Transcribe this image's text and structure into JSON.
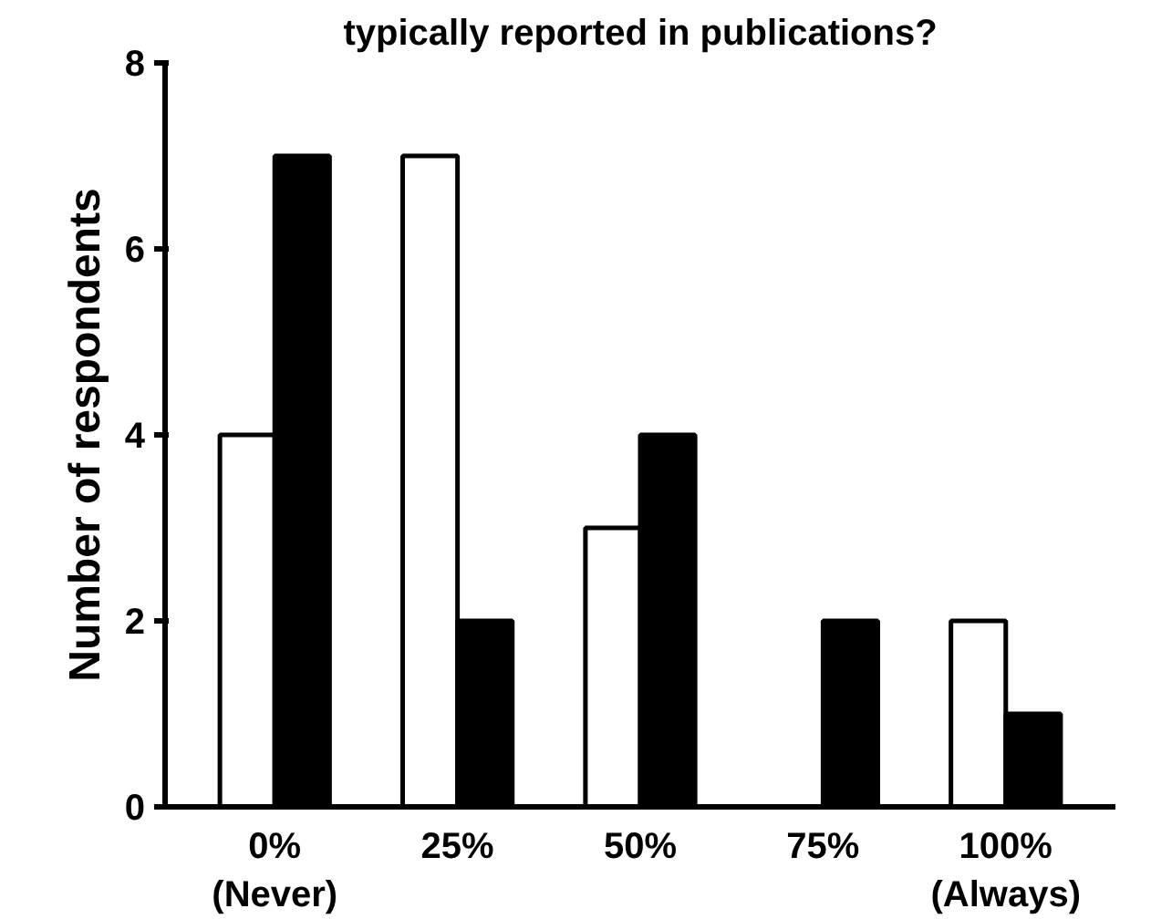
{
  "chart_data": {
    "type": "bar",
    "title": "typically reported in publications?",
    "ylabel": "Number of respondents",
    "categories": [
      "0%\n(Never)",
      "25%",
      "50%",
      "75%",
      "100%\n(Always)"
    ],
    "series": [
      {
        "color": "#ffffff",
        "values": [
          4,
          7,
          3,
          0,
          2
        ]
      },
      {
        "color": "#000000",
        "values": [
          7,
          2,
          4,
          2,
          1
        ]
      }
    ],
    "ylim": [
      0,
      8
    ],
    "yticks": [
      0,
      2,
      4,
      6,
      8
    ],
    "grid": false
  }
}
